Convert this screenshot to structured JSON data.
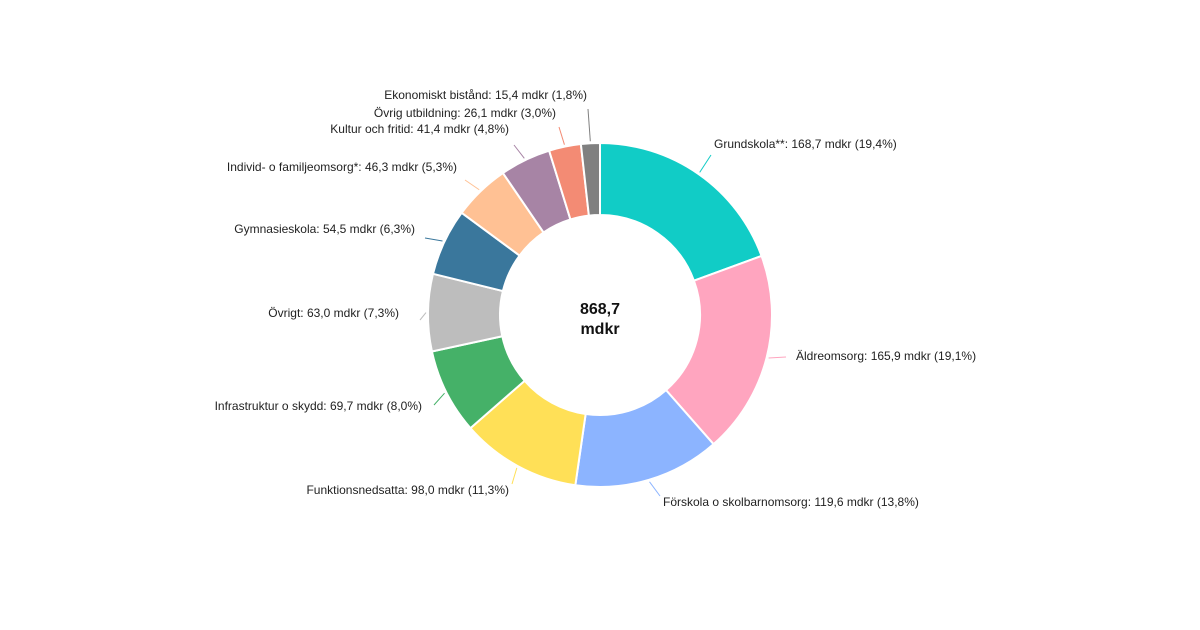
{
  "chart_data": {
    "type": "pie",
    "variant": "donut",
    "total_label_line1": "868,7",
    "total_label_line2": "mdkr",
    "slices": [
      {
        "name": "Grundskola**",
        "value": 168.7,
        "percent": 19.4,
        "label": "Grundskola**: 168,7 mdkr (19,4%)",
        "color": "#11CCC6"
      },
      {
        "name": "Äldreomsorg",
        "value": 165.9,
        "percent": 19.1,
        "label": "Äldreomsorg: 165,9 mdkr (19,1%)",
        "color": "#FFA5BF"
      },
      {
        "name": "Förskola o skolbarnomsorg",
        "value": 119.6,
        "percent": 13.8,
        "label": "Förskola o skolbarnomsorg: 119,6 mdkr (13,8%)",
        "color": "#8CB4FF"
      },
      {
        "name": "Funktionsnedsatta",
        "value": 98.0,
        "percent": 11.3,
        "label": "Funktionsnedsatta: 98,0 mdkr (11,3%)",
        "color": "#FFE057"
      },
      {
        "name": "Infrastruktur o skydd",
        "value": 69.7,
        "percent": 8.0,
        "label": "Infrastruktur o skydd: 69,7 mdkr (8,0%)",
        "color": "#45B168"
      },
      {
        "name": "Övrigt",
        "value": 63.0,
        "percent": 7.3,
        "label": "Övrigt: 63,0 mdkr (7,3%)",
        "color": "#BDBDBD"
      },
      {
        "name": "Gymnasieskola",
        "value": 54.5,
        "percent": 6.3,
        "label": "Gymnasieskola: 54,5 mdkr (6,3%)",
        "color": "#3A779C"
      },
      {
        "name": "Individ- o familjeomsorg*",
        "value": 46.3,
        "percent": 5.3,
        "label": "Individ- o familjeomsorg*: 46,3 mdkr (5,3%)",
        "color": "#FFC194"
      },
      {
        "name": "Kultur och fritid",
        "value": 41.4,
        "percent": 4.8,
        "label": "Kultur och fritid: 41,4 mdkr (4,8%)",
        "color": "#A784A5"
      },
      {
        "name": "Övrig utbildning",
        "value": 26.1,
        "percent": 3.0,
        "label": "Övrig utbildning: 26,1 mdkr (3,0%)",
        "color": "#F38B74"
      },
      {
        "name": "Ekonomiskt bistånd",
        "value": 15.4,
        "percent": 1.8,
        "label": "Ekonomiskt bistånd: 15,4 mdkr (1,8%)",
        "color": "#808080"
      }
    ]
  }
}
